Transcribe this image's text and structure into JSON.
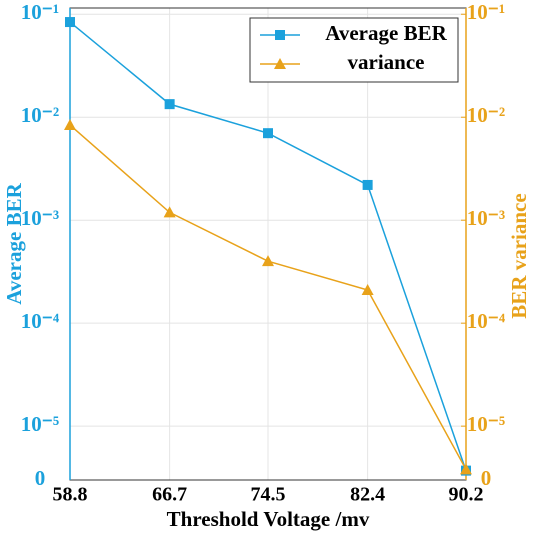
{
  "chart_data": {
    "type": "line",
    "x_label": "Threshold Voltage /mv",
    "y_label": "Average BER",
    "y2_label": "BER variance",
    "x": [
      58.8,
      66.7,
      74.5,
      82.4,
      90.2
    ],
    "xlim": [
      58.8,
      90.2
    ],
    "xticks": [
      58.8,
      66.7,
      74.5,
      82.4,
      90.2
    ],
    "y_scale": "log",
    "ylim": [
      3e-06,
      0.115
    ],
    "yticks": [
      {
        "value": 3e-06,
        "label": "0"
      },
      {
        "value": 1e-05,
        "label": "10⁻⁵"
      },
      {
        "value": 0.0001,
        "label": "10⁻⁴"
      },
      {
        "value": 0.001,
        "label": "10⁻³"
      },
      {
        "value": 0.01,
        "label": "10⁻²"
      },
      {
        "value": 0.1,
        "label": "10⁻¹"
      }
    ],
    "y2lim": [
      3e-06,
      0.115
    ],
    "y2ticks": [
      {
        "value": 3e-06,
        "label": "0"
      },
      {
        "value": 1e-05,
        "label": "10⁻⁵"
      },
      {
        "value": 0.0001,
        "label": "10⁻⁴"
      },
      {
        "value": 0.001,
        "label": "10⁻³"
      },
      {
        "value": 0.01,
        "label": "10⁻²"
      },
      {
        "value": 0.1,
        "label": "10⁻¹"
      }
    ],
    "y_color": "#1ba1dc",
    "y2_color": "#e8a21a",
    "grid": true,
    "legend": "upper right",
    "series": [
      {
        "name": "Average BER",
        "color": "#1ba1dc",
        "marker": "square",
        "values": [
          0.084,
          0.0134,
          0.007,
          0.0022,
          3.7e-06
        ]
      },
      {
        "name": "variance",
        "color": "#e8a21a",
        "marker": "triangle",
        "axis": "y2",
        "values": [
          0.0084,
          0.00119,
          0.0004,
          0.00021,
          3.8e-06
        ]
      }
    ]
  }
}
